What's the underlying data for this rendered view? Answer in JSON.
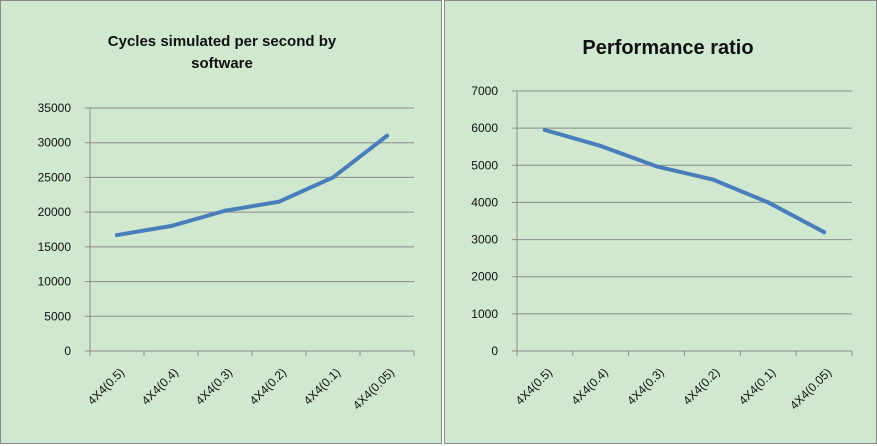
{
  "chart_data": [
    {
      "type": "line",
      "title": "Cycles simulated per second by software",
      "title_lines": [
        "Cycles simulated per second by",
        "software"
      ],
      "categories": [
        "4X4(0.5)",
        "4X4(0.4)",
        "4X4(0.3)",
        "4X4(0.2)",
        "4X4(0.1)",
        "4X4(0.05)"
      ],
      "series": [
        {
          "values": [
            16700,
            18000,
            20200,
            21500,
            25000,
            31000
          ]
        }
      ],
      "yticks": [
        0,
        5000,
        10000,
        15000,
        20000,
        25000,
        30000,
        35000
      ],
      "ylim": [
        0,
        35000
      ],
      "xlabel": "",
      "ylabel": "",
      "grid": "horizontal",
      "legend": "none",
      "line_color": "#4a7ebb"
    },
    {
      "type": "line",
      "title": "Performance ratio",
      "title_lines": [
        "Performance ratio"
      ],
      "categories": [
        "4X4(0.5)",
        "4X4(0.4)",
        "4X4(0.3)",
        "4X4(0.2)",
        "4X4(0.1)",
        "4X4(0.05)"
      ],
      "series": [
        {
          "values": [
            5950,
            5520,
            4970,
            4620,
            4000,
            3200
          ]
        }
      ],
      "yticks": [
        0,
        1000,
        2000,
        3000,
        4000,
        5000,
        6000,
        7000
      ],
      "ylim": [
        0,
        7000
      ],
      "xlabel": "",
      "ylabel": "",
      "grid": "horizontal",
      "legend": "none",
      "line_color": "#4a7ebb"
    }
  ],
  "colors": {
    "panel_background": "#cfe8cf",
    "gridline": "#8c8c8c",
    "series": "#4a7ebb"
  }
}
